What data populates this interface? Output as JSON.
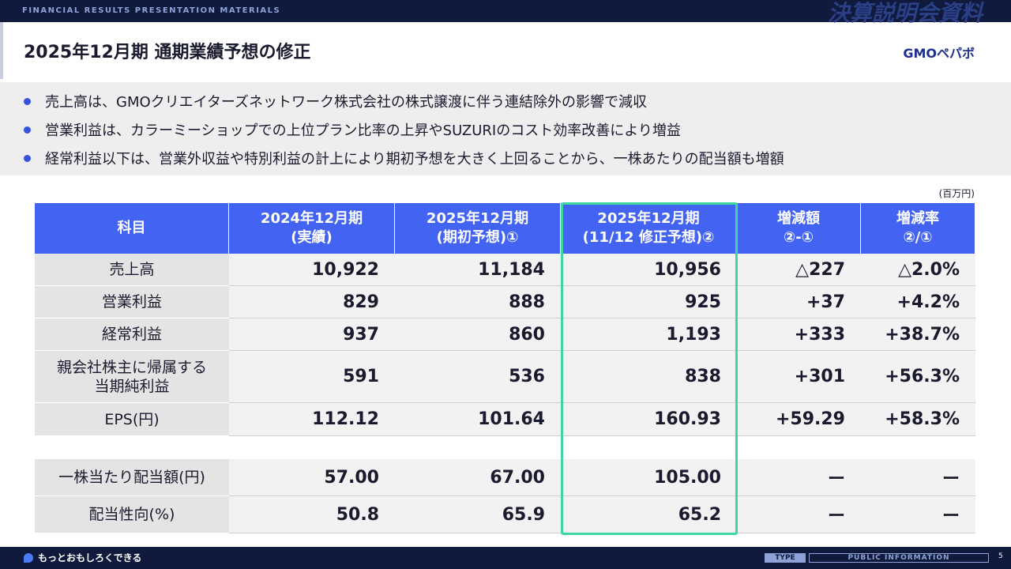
{
  "header": {
    "top_label": "FINANCIAL RESULTS PRESENTATION MATERIALS",
    "banner": "決算説明会資料",
    "title": "2025年12月期 通期業績予想の修正",
    "logo": "GMOペパボ"
  },
  "bullets": [
    "売上高は、GMOクリエイターズネットワーク株式会社の株式譲渡に伴う連結除外の影響で減収",
    "営業利益は、カラーミーショップでの上位プラン比率の上昇やSUZURIのコスト効率改善により増益",
    "経常利益以下は、営業外収益や特別利益の計上により期初予想を大きく上回ることから、一株あたりの配当額も増額"
  ],
  "table": {
    "unit": "(百万円)",
    "headers": [
      [
        "科目"
      ],
      [
        "2024年12月期",
        "(実績)"
      ],
      [
        "2025年12月期",
        "(期初予想)①"
      ],
      [
        "2025年12月期",
        "(11/12 修正予想)②"
      ],
      [
        "増減額",
        "②-①"
      ],
      [
        "増減率",
        "②/①"
      ]
    ],
    "rows": [
      [
        [
          "売上高"
        ],
        "10,922",
        "11,184",
        "10,956",
        "△227",
        "△2.0%"
      ],
      [
        [
          "営業利益"
        ],
        "829",
        "888",
        "925",
        "+37",
        "+4.2%"
      ],
      [
        [
          "経常利益"
        ],
        "937",
        "860",
        "1,193",
        "+333",
        "+38.7%"
      ],
      [
        [
          "親会社株主に帰属する",
          "当期純利益"
        ],
        "591",
        "536",
        "838",
        "+301",
        "+56.3%"
      ],
      [
        [
          "EPS(円)"
        ],
        "112.12",
        "101.64",
        "160.93",
        "+59.29",
        "+58.3%"
      ],
      [
        [
          "一株当たり配当額(円)"
        ],
        "57.00",
        "67.00",
        "105.00",
        "ー",
        "ー"
      ],
      [
        [
          "配当性向(%)"
        ],
        "50.8",
        "65.9",
        "65.2",
        "ー",
        "ー"
      ]
    ]
  },
  "footer": {
    "tagline": "もっとおもしろくできる",
    "type": "TYPE",
    "info": "PUBLIC INFORMATION",
    "page": "5"
  }
}
